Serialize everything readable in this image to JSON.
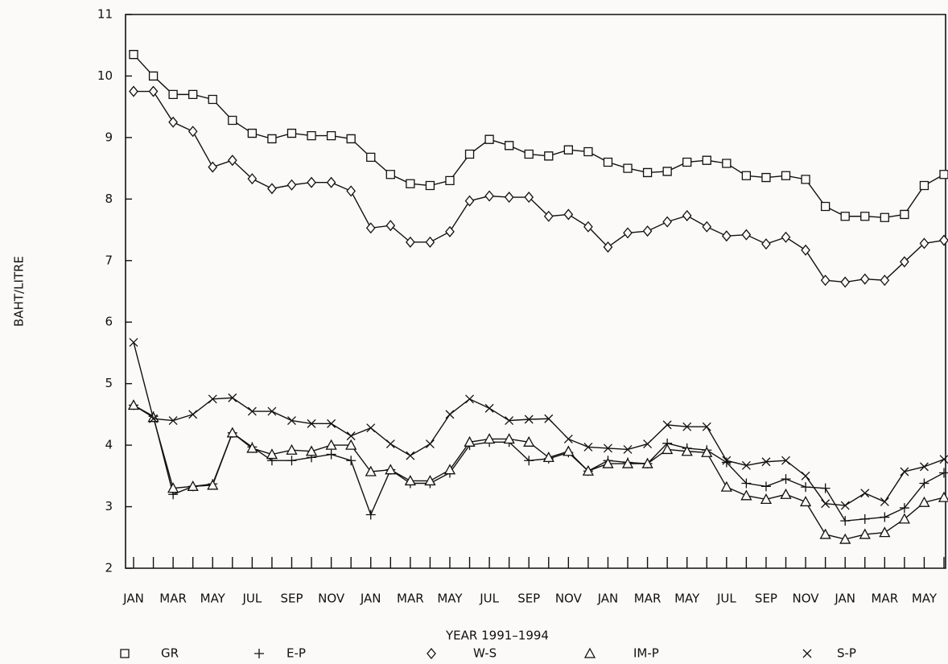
{
  "chart_data": {
    "type": "line",
    "y_label": "BAHT/LITRE",
    "x_label": "YEAR 1991–1994",
    "categories": [
      "JAN",
      null,
      "MAR",
      null,
      "MAY",
      null,
      "JUL",
      null,
      "SEP",
      null,
      "NOV",
      null,
      "JAN",
      null,
      "MAR",
      null,
      "MAY",
      null,
      "JUL",
      null,
      "SEP",
      null,
      "NOV",
      null,
      "JAN",
      null,
      "MAR",
      null,
      "MAY",
      null,
      "JUL",
      null,
      "SEP",
      null,
      "NOV",
      null,
      "JAN",
      null,
      "MAR",
      null,
      "MAY",
      null
    ],
    "series": [
      {
        "name": "GR",
        "color": "#111111",
        "marker": "square",
        "values": [
          10.35,
          10.0,
          9.7,
          9.7,
          9.62,
          9.28,
          9.07,
          8.98,
          9.07,
          9.03,
          9.03,
          8.98,
          8.68,
          8.4,
          8.25,
          8.22,
          8.3,
          8.73,
          8.97,
          8.87,
          8.73,
          8.7,
          8.8,
          8.77,
          8.6,
          8.5,
          8.43,
          8.45,
          8.6,
          8.63,
          8.58,
          8.38,
          8.35,
          8.38,
          8.32,
          7.88,
          7.72,
          7.72,
          7.7,
          7.75,
          8.22,
          8.4
        ]
      },
      {
        "name": "E-P",
        "color": "#111111",
        "marker": "plus",
        "values": [
          4.65,
          4.47,
          3.2,
          3.33,
          3.37,
          4.2,
          3.97,
          3.75,
          3.75,
          3.8,
          3.85,
          3.75,
          2.87,
          3.6,
          3.38,
          3.38,
          3.55,
          4.0,
          4.05,
          4.05,
          3.75,
          3.78,
          3.88,
          3.58,
          3.75,
          3.72,
          3.7,
          4.03,
          3.95,
          3.92,
          3.72,
          3.38,
          3.33,
          3.45,
          3.32,
          3.3,
          2.77,
          2.8,
          2.83,
          2.98,
          3.38,
          3.55
        ]
      },
      {
        "name": "W-S",
        "color": "#111111",
        "marker": "diamond",
        "values": [
          9.75,
          9.75,
          9.25,
          9.1,
          8.52,
          8.63,
          8.33,
          8.17,
          8.23,
          8.27,
          8.27,
          8.13,
          7.53,
          7.57,
          7.3,
          7.3,
          7.47,
          7.97,
          8.05,
          8.03,
          8.03,
          7.72,
          7.75,
          7.55,
          7.22,
          7.45,
          7.48,
          7.63,
          7.73,
          7.55,
          7.4,
          7.42,
          7.27,
          7.38,
          7.17,
          6.68,
          6.65,
          6.7,
          6.68,
          6.98,
          7.28,
          7.33
        ]
      },
      {
        "name": "IM-P",
        "color": "#111111",
        "marker": "triangle",
        "values": [
          4.65,
          4.45,
          3.3,
          3.33,
          3.35,
          4.2,
          3.95,
          3.85,
          3.92,
          3.9,
          4.0,
          4.0,
          3.57,
          3.6,
          3.42,
          3.42,
          3.6,
          4.05,
          4.1,
          4.1,
          4.05,
          3.8,
          3.9,
          3.58,
          3.7,
          3.7,
          3.7,
          3.93,
          3.9,
          3.88,
          3.32,
          3.18,
          3.12,
          3.2,
          3.08,
          2.55,
          2.47,
          2.55,
          2.58,
          2.8,
          3.07,
          3.15
        ]
      },
      {
        "name": "S-P",
        "color": "#111111",
        "marker": "cross",
        "values": [
          5.67,
          4.43,
          4.4,
          4.5,
          4.75,
          4.77,
          4.55,
          4.55,
          4.4,
          4.35,
          4.35,
          4.15,
          4.28,
          4.02,
          3.83,
          4.02,
          4.5,
          4.75,
          4.6,
          4.4,
          4.42,
          4.43,
          4.1,
          3.97,
          3.95,
          3.93,
          4.02,
          4.33,
          4.3,
          4.3,
          3.75,
          3.67,
          3.73,
          3.75,
          3.5,
          3.05,
          3.02,
          3.22,
          3.08,
          3.57,
          3.65,
          3.77
        ]
      }
    ],
    "ylim": [
      2,
      11
    ],
    "yticks": [
      2,
      3,
      4,
      5,
      6,
      7,
      8,
      9,
      10,
      11
    ],
    "grid": false,
    "legend": "bottom"
  }
}
